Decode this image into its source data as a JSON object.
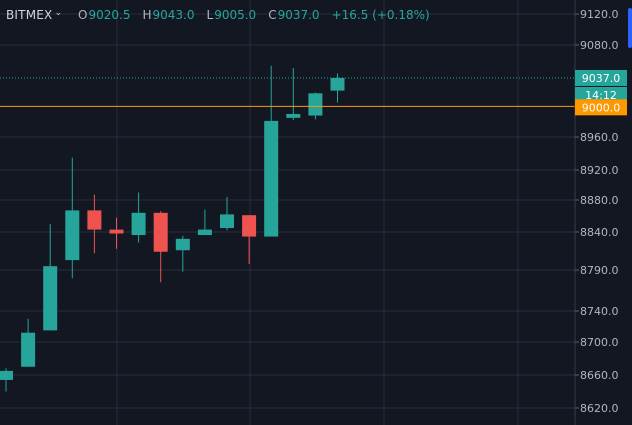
{
  "header": {
    "symbol": "BITMEX",
    "open_label": "O",
    "open_value": "9020.5",
    "high_label": "H",
    "high_value": "9043.0",
    "low_label": "L",
    "low_value": "9005.0",
    "close_label": "C",
    "close_value": "9037.0",
    "change": "+16.5 (+0.18%)"
  },
  "colors": {
    "background": "#131722",
    "up": "#26a69a",
    "down": "#ef5350",
    "grid": "#2a2e39",
    "axis_text": "#b2b5be",
    "alert_line": "#ff9800"
  },
  "markers": {
    "last_price": "9037.0",
    "countdown": "14:12",
    "alert_price": "9000.0"
  },
  "chart_data": {
    "type": "candlestick",
    "y_ticks": [
      {
        "value": 9120,
        "label": "9120.0"
      },
      {
        "value": 9080,
        "label": "9080.0"
      },
      {
        "value": 8960,
        "label": "8960.0"
      },
      {
        "value": 8920,
        "label": "8920.0"
      },
      {
        "value": 8880,
        "label": "8880.0"
      },
      {
        "value": 8840,
        "label": "8840.0"
      },
      {
        "value": 8790,
        "label": "8790.0"
      },
      {
        "value": 8740,
        "label": "8740.0"
      },
      {
        "value": 8700,
        "label": "8700.0"
      },
      {
        "value": 8660,
        "label": "8660.0"
      },
      {
        "value": 8620,
        "label": "8620.0"
      }
    ],
    "last_price": 9037.0,
    "alert_price": 9000.0,
    "candles": [
      {
        "open": 8654,
        "high": 8668,
        "low": 8640,
        "close": 8665
      },
      {
        "open": 8670,
        "high": 8730,
        "low": 8670,
        "close": 8712
      },
      {
        "open": 8715,
        "high": 8850,
        "low": 8715,
        "close": 8795
      },
      {
        "open": 8803,
        "high": 8935,
        "low": 8780,
        "close": 8867
      },
      {
        "open": 8867,
        "high": 8887,
        "low": 8812,
        "close": 8843
      },
      {
        "open": 8843,
        "high": 8858,
        "low": 8818,
        "close": 8838
      },
      {
        "open": 8836,
        "high": 8890,
        "low": 8826,
        "close": 8864
      },
      {
        "open": 8864,
        "high": 8866,
        "low": 8775,
        "close": 8814
      },
      {
        "open": 8816,
        "high": 8835,
        "low": 8788,
        "close": 8831
      },
      {
        "open": 8836,
        "high": 8868,
        "low": 8836,
        "close": 8843
      },
      {
        "open": 8845,
        "high": 8884,
        "low": 8842,
        "close": 8862
      },
      {
        "open": 8861,
        "high": 8861,
        "low": 8798,
        "close": 8834
      },
      {
        "open": 8834,
        "high": 9053,
        "low": 8834,
        "close": 8981
      },
      {
        "open": 8985,
        "high": 9050,
        "low": 8982,
        "close": 8990
      },
      {
        "open": 8988,
        "high": 9018,
        "low": 8983,
        "close": 9017
      },
      {
        "open": 9020.5,
        "high": 9043.0,
        "low": 9005.0,
        "close": 9037.0
      }
    ]
  }
}
